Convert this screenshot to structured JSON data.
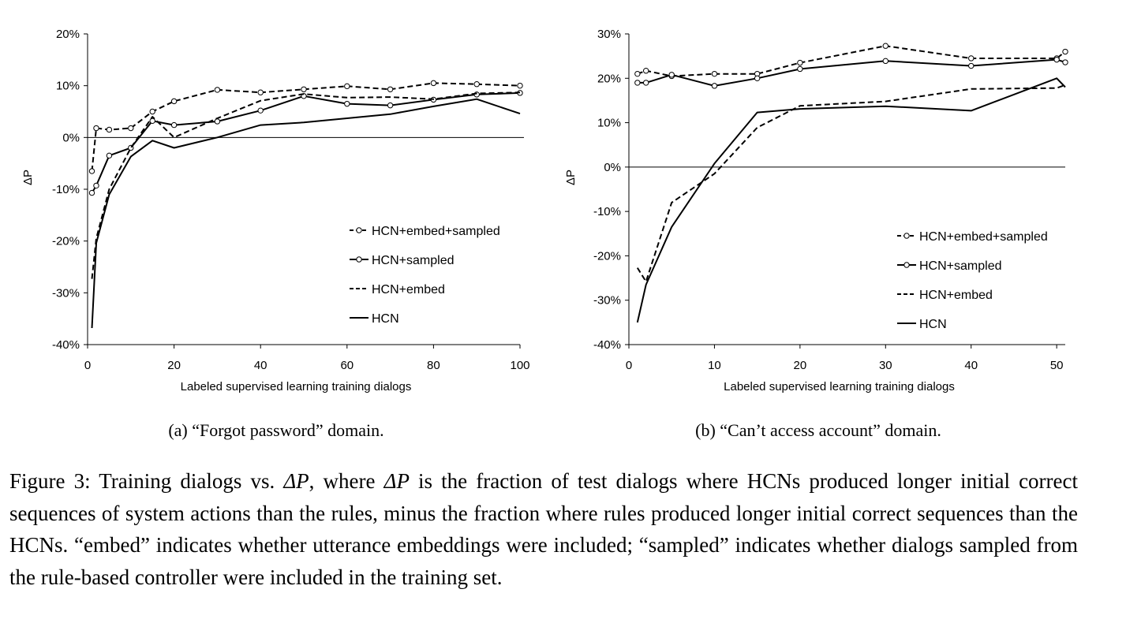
{
  "chart_data": [
    {
      "type": "line",
      "title": "",
      "xlabel": "Labeled supervised learning training dialogs",
      "ylabel": "ΔP",
      "xlim": [
        0,
        100
      ],
      "ylim": [
        -40,
        20
      ],
      "xticks": [
        "0",
        "20",
        "40",
        "60",
        "80",
        "100"
      ],
      "yticks": [
        "-40%",
        "-30%",
        "-20%",
        "-10%",
        "0%",
        "10%",
        "20%"
      ],
      "subcaption": "(a) “Forgot password” domain.",
      "legend_position": "lower-right",
      "series": [
        {
          "name": "HCN+embed+sampled",
          "style": "dashed-circle",
          "x": [
            1,
            2,
            5,
            10,
            15,
            20,
            30,
            40,
            50,
            60,
            70,
            80,
            90,
            100
          ],
          "y": [
            -6.5,
            1.8,
            1.5,
            1.8,
            5.0,
            7.0,
            9.2,
            8.7,
            9.3,
            9.9,
            9.3,
            10.5,
            10.3,
            10.0
          ]
        },
        {
          "name": "HCN+sampled",
          "style": "solid-circle",
          "x": [
            1,
            2,
            5,
            10,
            15,
            20,
            30,
            40,
            50,
            60,
            70,
            80,
            90,
            100
          ],
          "y": [
            -10.7,
            -9.3,
            -3.5,
            -2.0,
            3.2,
            2.4,
            3.1,
            5.2,
            8.0,
            6.5,
            6.2,
            7.3,
            8.3,
            8.6
          ]
        },
        {
          "name": "HCN+embed",
          "style": "dashed",
          "x": [
            1,
            2,
            5,
            10,
            15,
            20,
            30,
            40,
            50,
            60,
            70,
            80,
            90,
            100
          ],
          "y": [
            -27.3,
            -19.5,
            -10.0,
            -2.0,
            4.0,
            0.0,
            3.7,
            7.1,
            8.4,
            7.7,
            7.8,
            7.4,
            8.5,
            8.7
          ]
        },
        {
          "name": "HCN",
          "style": "solid",
          "x": [
            1,
            2,
            5,
            10,
            15,
            20,
            30,
            40,
            50,
            60,
            70,
            80,
            90,
            100
          ],
          "y": [
            -36.8,
            -20.4,
            -11.0,
            -3.7,
            -0.6,
            -2.0,
            0.0,
            2.4,
            2.9,
            3.7,
            4.5,
            6.0,
            7.4,
            4.6
          ]
        }
      ]
    },
    {
      "type": "line",
      "title": "",
      "xlabel": "Labeled supervised learning training dialogs",
      "ylabel": "ΔP",
      "xlim": [
        0,
        51
      ],
      "ylim": [
        -40,
        30
      ],
      "xticks": [
        "0",
        "10",
        "20",
        "30",
        "40",
        "50"
      ],
      "yticks": [
        "-40%",
        "-30%",
        "-20%",
        "-10%",
        "0%",
        "10%",
        "20%",
        "30%"
      ],
      "subcaption": "(b) “Can’t access account” domain.",
      "legend_position": "lower-right",
      "series": [
        {
          "name": "HCN+embed+sampled",
          "style": "dashed-circle",
          "x": [
            1,
            2,
            5,
            10,
            15,
            20,
            30,
            40,
            50,
            51
          ],
          "y": [
            21.0,
            21.7,
            20.5,
            21.0,
            21.0,
            23.5,
            27.3,
            24.5,
            24.5,
            26.0
          ]
        },
        {
          "name": "HCN+sampled",
          "style": "solid-circle",
          "x": [
            1,
            2,
            5,
            10,
            15,
            20,
            30,
            40,
            50,
            51
          ],
          "y": [
            19.0,
            19.0,
            20.8,
            18.3,
            20.0,
            22.1,
            23.9,
            22.8,
            24.2,
            23.6
          ]
        },
        {
          "name": "HCN+embed",
          "style": "dashed",
          "x": [
            1,
            2,
            5,
            10,
            15,
            20,
            30,
            40,
            50,
            51
          ],
          "y": [
            -22.7,
            -25.8,
            -8.0,
            -1.5,
            8.9,
            13.8,
            14.8,
            17.6,
            17.8,
            18.5
          ]
        },
        {
          "name": "HCN",
          "style": "solid",
          "x": [
            1,
            2,
            5,
            10,
            15,
            20,
            30,
            40,
            50,
            51
          ],
          "y": [
            -35.0,
            -26.5,
            -13.5,
            0.8,
            12.3,
            13.1,
            13.7,
            12.7,
            20.0,
            18.0
          ]
        }
      ]
    }
  ],
  "caption": {
    "lead": "Figure 3: Training dialogs vs. ",
    "sym1": "ΔP",
    "mid": ", where ",
    "sym2": "ΔP",
    "rest": " is the fraction of test dialogs where HCNs produced longer initial correct sequences of system actions than the rules, minus the fraction where rules produced longer initial correct sequences than the HCNs. “embed” indicates whether utterance embeddings were included; “sampled” indicates whether dialogs sampled from the rule-based controller were included in the training set."
  }
}
